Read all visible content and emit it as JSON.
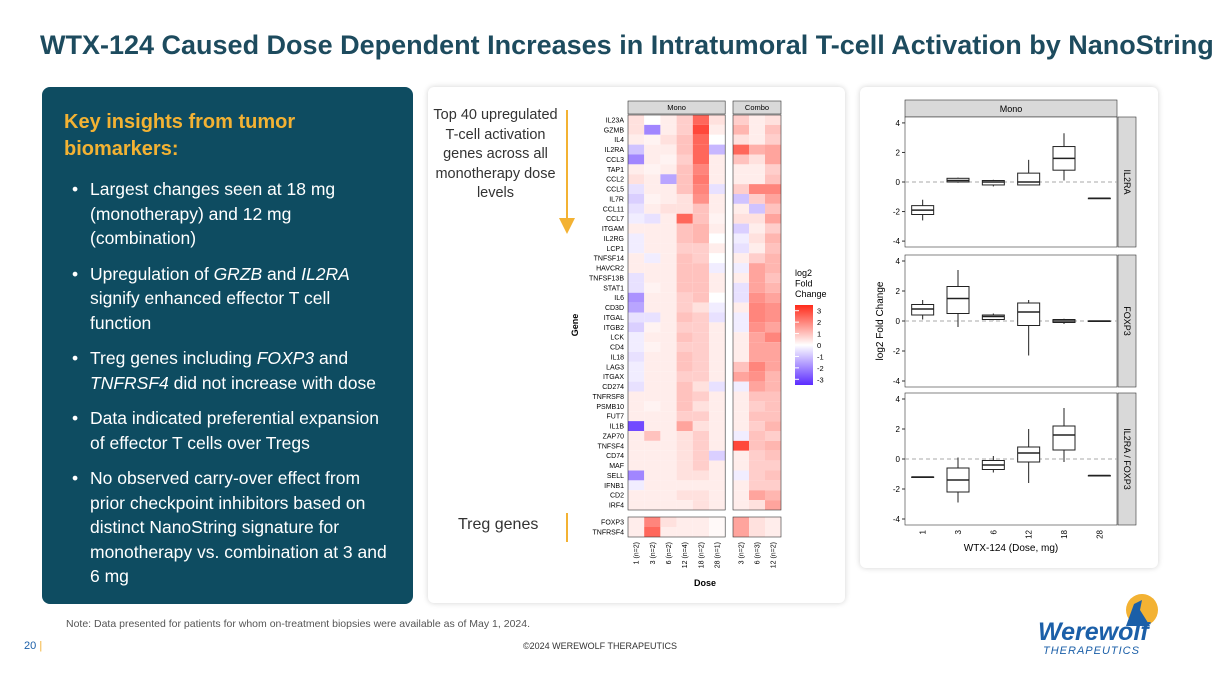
{
  "header": {
    "title": "WTX-124 Caused Dose Dependent Increases in Intratumoral T-cell Activation by NanoString"
  },
  "insights": {
    "heading": "Key insights from tumor biomarkers:",
    "bullets": [
      [
        {
          "text": "Largest changes seen at 18 mg (monotherapy) and 12 mg (combination)"
        }
      ],
      [
        {
          "text": "Upregulation of "
        },
        {
          "text": "GRZB",
          "italic": true
        },
        {
          "text": " and "
        },
        {
          "text": "IL2RA",
          "italic": true
        },
        {
          "text": " signify enhanced effector T cell function"
        }
      ],
      [
        {
          "text": "Treg genes including "
        },
        {
          "text": "FOXP3",
          "italic": true
        },
        {
          "text": " and "
        },
        {
          "text": "TNFRSF4",
          "italic": true
        },
        {
          "text": " did not increase with dose"
        }
      ],
      [
        {
          "text": "Data indicated preferential expansion of effector T cells over Tregs"
        }
      ],
      [
        {
          "text": "No observed carry-over effect from prior checkpoint inhibitors based on distinct NanoString signature for monotherapy vs. combination at 3 and 6 mg"
        }
      ]
    ]
  },
  "chart_data": [
    {
      "type": "heatmap",
      "x_label": "Dose",
      "y_label": "Gene",
      "annotations": [
        "Top 40 upregulated T-cell activation genes across all monotherapy dose levels",
        "Treg genes"
      ],
      "panels": [
        {
          "name": "Mono",
          "columns": [
            "1 (n=2)",
            "3 (n=2)",
            "6 (n=2)",
            "12 (n=4)",
            "18 (n=2)",
            "28 (n=1)"
          ]
        },
        {
          "name": "Combo",
          "columns": [
            "3 (n=2)",
            "6 (n=3)",
            "12 (n=2)"
          ]
        }
      ],
      "row_groups": [
        {
          "genes": [
            "IL23A",
            "GZMB",
            "IL4",
            "IL2RA",
            "CCL3",
            "TAP1",
            "CCL2",
            "CCL5",
            "IL7R",
            "CCL11",
            "CCL7",
            "ITGAM",
            "IL2RG",
            "LCP1",
            "TNFSF14",
            "HAVCR2",
            "TNFSF13B",
            "STAT1",
            "IL6",
            "CD3D",
            "ITGAL",
            "ITGB2",
            "LCK",
            "CD4",
            "IL18",
            "LAG3",
            "ITGAX",
            "CD274",
            "TNFRSF8",
            "PSMB10",
            "FUT7",
            "IL1B",
            "ZAP70",
            "TNFSF4",
            "CD74",
            "MAF",
            "SELL",
            "IFNB1",
            "CD2",
            "IRF4"
          ],
          "values": [
            [
              0.5,
              0,
              0.3,
              0.8,
              2.5,
              0.5,
              0.8,
              0.3,
              0.5
            ],
            [
              0.5,
              -2,
              0.3,
              0.8,
              3,
              0.3,
              1.2,
              0.3,
              1
            ],
            [
              0.3,
              0.2,
              0.5,
              1,
              2.5,
              0,
              0.5,
              0.3,
              0.8
            ],
            [
              -1,
              0.3,
              0.3,
              1,
              2.5,
              -1.2,
              2.5,
              1.3,
              1.5
            ],
            [
              -2,
              0.3,
              0.2,
              0.8,
              2.5,
              0.3,
              1,
              0.5,
              1.5
            ],
            [
              0.3,
              0.2,
              0.3,
              1,
              2,
              0.3,
              0.3,
              0.3,
              0.8
            ],
            [
              0.5,
              0.3,
              -1.5,
              1,
              2.2,
              0.3,
              0.3,
              0.3,
              1
            ],
            [
              -0.5,
              0.3,
              0.3,
              1,
              2,
              -0.5,
              0.8,
              2,
              2
            ],
            [
              -0.8,
              0.2,
              0.3,
              0.5,
              1.8,
              0.3,
              -1,
              0.8,
              1.5
            ],
            [
              -0.5,
              0.3,
              0.5,
              0.5,
              1,
              0.3,
              0.3,
              -1,
              1
            ],
            [
              -0.3,
              -0.5,
              0.3,
              2.5,
              1,
              0.2,
              0.5,
              0.5,
              1.5
            ],
            [
              0.3,
              0.3,
              0.3,
              1,
              1.2,
              0.3,
              -0.8,
              0.3,
              0.8
            ],
            [
              -0.3,
              0.3,
              0.3,
              1,
              1.2,
              0,
              -0.3,
              0.5,
              1.2
            ],
            [
              -0.3,
              0.3,
              0.3,
              0.8,
              0.8,
              0.3,
              -0.5,
              0.3,
              1
            ],
            [
              0.3,
              -0.3,
              0.3,
              1,
              0.8,
              0,
              0.3,
              0.8,
              1.2
            ],
            [
              0.3,
              0.3,
              0.3,
              1,
              1,
              -0.3,
              -0.3,
              1.5,
              1.2
            ],
            [
              -0.5,
              0.3,
              0.3,
              1,
              1,
              0.3,
              0.3,
              1.5,
              1
            ],
            [
              -0.5,
              0.2,
              0.3,
              1,
              1,
              0.3,
              -0.5,
              1.5,
              1.2
            ],
            [
              -1.8,
              0.3,
              0.3,
              0.8,
              1,
              0,
              -0.5,
              1.8,
              1.5
            ],
            [
              -1.5,
              0.3,
              0.3,
              0.8,
              0.5,
              -0.3,
              0.3,
              2,
              1.8
            ],
            [
              -0.5,
              -0.5,
              0.3,
              1,
              0.8,
              -0.5,
              -0.3,
              2,
              1.8
            ],
            [
              -0.8,
              0.2,
              0.3,
              0.8,
              0.8,
              0.3,
              -0.3,
              1.8,
              1.5
            ],
            [
              -0.3,
              0.3,
              0.3,
              1,
              0.8,
              0.3,
              0.3,
              1.5,
              2
            ],
            [
              -0.3,
              0.2,
              0.3,
              0.8,
              0.8,
              0.3,
              0.3,
              1.5,
              1.5
            ],
            [
              -0.5,
              0.3,
              0.3,
              1,
              0.8,
              0.3,
              0.3,
              1.5,
              1.5
            ],
            [
              -0.3,
              0.3,
              0.3,
              1,
              0.8,
              0.3,
              1,
              2,
              1.5
            ],
            [
              -0.3,
              0.3,
              0.3,
              0.8,
              0.8,
              0.3,
              1.5,
              1.8,
              1.2
            ],
            [
              -0.5,
              0.3,
              0.3,
              1,
              0.5,
              -0.5,
              -0.3,
              1.5,
              1.2
            ],
            [
              0.3,
              0.3,
              0.3,
              1,
              0.8,
              0.3,
              0.3,
              1,
              1
            ],
            [
              0.3,
              0.2,
              0.3,
              1,
              0.5,
              0.3,
              0.3,
              0.8,
              1
            ],
            [
              0.3,
              0.3,
              0.3,
              0.8,
              0.8,
              0.3,
              0.3,
              1,
              1
            ],
            [
              -3,
              0.3,
              0.3,
              1.5,
              0.5,
              0.3,
              0.3,
              0.8,
              1.2
            ],
            [
              0.3,
              1,
              0.3,
              0.5,
              0.8,
              0.3,
              -0.3,
              1,
              0.8
            ],
            [
              0.3,
              0.3,
              0.3,
              0.5,
              0.8,
              0.3,
              3,
              1,
              1.2
            ],
            [
              0.3,
              0.3,
              0.3,
              0.5,
              0.8,
              -0.8,
              0.3,
              0.8,
              1
            ],
            [
              0.3,
              0.3,
              0.3,
              0.5,
              0.8,
              0.3,
              0.3,
              0.8,
              0.8
            ],
            [
              -2,
              0.3,
              0.3,
              0.5,
              0.5,
              0.3,
              -0.3,
              0.8,
              1
            ],
            [
              -0.3,
              0.3,
              0.3,
              0.3,
              0.3,
              0.3,
              0.3,
              0.8,
              0.8
            ],
            [
              0.3,
              0.3,
              0.3,
              0.5,
              0.5,
              0.3,
              0.3,
              1.5,
              1.2
            ],
            [
              0.3,
              0.3,
              0.3,
              0.3,
              0.5,
              0.3,
              0.3,
              0.5,
              1.5
            ]
          ]
        },
        {
          "genes": [
            "FOXP3",
            "TNFRSF4"
          ],
          "values": [
            [
              0.3,
              2,
              0.5,
              0.3,
              0.3,
              0.1,
              1.5,
              0.5,
              0.3
            ],
            [
              0.3,
              2.5,
              0.3,
              0.3,
              0.3,
              0.1,
              1.5,
              0.5,
              0.3
            ]
          ]
        }
      ],
      "legend_title": "log2 Fold Change",
      "zlim": [
        -3.5,
        3.5
      ],
      "zticks": [
        3,
        2,
        1,
        0,
        -1,
        -2,
        -3
      ],
      "colors": {
        "low": "#5b2cff",
        "mid": "#ffffff",
        "high": "#ff2a1a"
      }
    },
    {
      "type": "box",
      "title": "Mono",
      "x_label": "WTX-124 (Dose, mg)",
      "y_label": "log2 Fold Change",
      "categories": [
        "1",
        "3",
        "6",
        "12",
        "18",
        "28"
      ],
      "ylim": [
        -4.4,
        4.4
      ],
      "yticks": [
        -4,
        -2,
        0,
        2,
        4
      ],
      "hline": 0,
      "panels": [
        {
          "name": "IL2RA",
          "boxes": [
            {
              "min": -2.6,
              "q1": -2.2,
              "median": -1.9,
              "q3": -1.6,
              "max": -1.2
            },
            {
              "min": -0.05,
              "q1": 0,
              "median": 0.1,
              "q3": 0.25,
              "max": 0.3
            },
            {
              "min": -0.3,
              "q1": -0.2,
              "median": 0,
              "q3": 0.1,
              "max": 0.15
            },
            {
              "min": -0.2,
              "q1": -0.2,
              "median": 0,
              "q3": 0.6,
              "max": 1.5
            },
            {
              "min": 0.1,
              "q1": 0.8,
              "median": 1.6,
              "q3": 2.4,
              "max": 3.3
            },
            {
              "min": -1.1,
              "q1": -1.1,
              "median": -1.1,
              "q3": -1.1,
              "max": -1.1
            }
          ]
        },
        {
          "name": "FOXP3",
          "boxes": [
            {
              "min": 0.1,
              "q1": 0.4,
              "median": 0.8,
              "q3": 1.1,
              "max": 1.4
            },
            {
              "min": -0.4,
              "q1": 0.5,
              "median": 1.5,
              "q3": 2.3,
              "max": 3.4
            },
            {
              "min": 0.05,
              "q1": 0.1,
              "median": 0.3,
              "q3": 0.4,
              "max": 0.5
            },
            {
              "min": -2.3,
              "q1": -0.3,
              "median": 0.6,
              "q3": 1.2,
              "max": 1.4
            },
            {
              "min": -0.2,
              "q1": -0.1,
              "median": 0,
              "q3": 0.1,
              "max": 0.15
            },
            {
              "min": 0,
              "q1": 0,
              "median": 0,
              "q3": 0,
              "max": 0
            }
          ]
        },
        {
          "name": "IL2RA / FOXP3",
          "boxes": [
            {
              "min": -1.2,
              "q1": -1.2,
              "median": -1.2,
              "q3": -1.2,
              "max": -1.2
            },
            {
              "min": -2.9,
              "q1": -2.2,
              "median": -1.4,
              "q3": -0.6,
              "max": 0.1
            },
            {
              "min": -0.9,
              "q1": -0.7,
              "median": -0.4,
              "q3": -0.1,
              "max": 0.2
            },
            {
              "min": -1.6,
              "q1": -0.2,
              "median": 0.4,
              "q3": 0.8,
              "max": 2
            },
            {
              "min": -0.2,
              "q1": 0.6,
              "median": 1.6,
              "q3": 2.2,
              "max": 3.4
            },
            {
              "min": -1.1,
              "q1": -1.1,
              "median": -1.1,
              "q3": -1.1,
              "max": -1.1
            }
          ]
        }
      ]
    }
  ],
  "note": "Note:  Data presented for patients for whom on-treatment biopsies were available as of May 1, 2024.",
  "footer": {
    "page": "20",
    "copyright": "©2024 WEREWOLF THERAPEUTICS",
    "logo_name": "Werewolf",
    "logo_sub": "THERAPEUTICS"
  }
}
